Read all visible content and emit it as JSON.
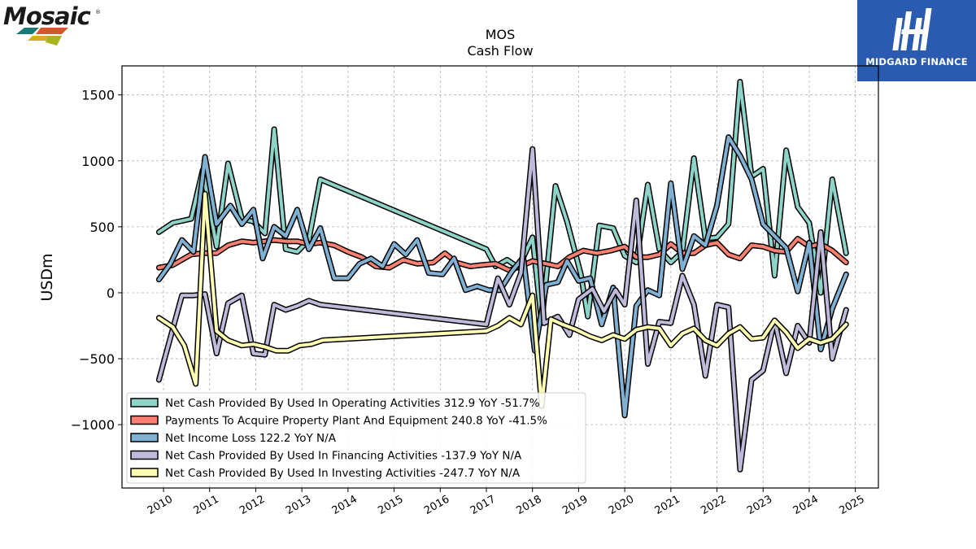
{
  "logos": {
    "left_wordmark": "Mosaic",
    "right_brand": "MIDGARD FINANCE"
  },
  "colors": {
    "operating": "#8dd3c7",
    "capex": "#fb8072",
    "net_income": "#80b1d3",
    "financing": "#bebada",
    "investing": "#ffffb3",
    "midgard_bg": "#2a5bb0"
  },
  "chart_data": {
    "type": "line",
    "title": "MOS",
    "subtitle": "Cash Flow",
    "ylabel": "USDm",
    "xlabel": "",
    "ylim": [
      -1480,
      1720
    ],
    "xlim": [
      2009.1,
      2025.5
    ],
    "yticks": [
      -1000,
      -500,
      0,
      500,
      1000,
      1500
    ],
    "ytick_labels": [
      "−1000",
      "−500",
      "0",
      "500",
      "1000",
      "1500"
    ],
    "xticks": [
      "2010",
      "2011",
      "2012",
      "2013",
      "2014",
      "2015",
      "2016",
      "2017",
      "2018",
      "2019",
      "2020",
      "2021",
      "2022",
      "2023",
      "2024",
      "2025"
    ],
    "grid": true,
    "legend_position": "lower-left",
    "series": [
      {
        "key": "operating",
        "legend": "Net Cash Provided By Used In Operating Activities  312.9 YoY -51.7%",
        "points": [
          [
            2009.9,
            460
          ],
          [
            2010.2,
            530
          ],
          [
            2010.6,
            560
          ],
          [
            2010.85,
            930
          ],
          [
            2011.15,
            350
          ],
          [
            2011.4,
            980
          ],
          [
            2011.7,
            560
          ],
          [
            2011.95,
            540
          ],
          [
            2012.2,
            450
          ],
          [
            2012.4,
            1240
          ],
          [
            2012.65,
            330
          ],
          [
            2012.9,
            310
          ],
          [
            2013.15,
            400
          ],
          [
            2013.4,
            860
          ],
          [
            2017.0,
            330
          ],
          [
            2017.2,
            200
          ],
          [
            2017.45,
            250
          ],
          [
            2017.7,
            190
          ],
          [
            2018.0,
            420
          ],
          [
            2018.2,
            -230
          ],
          [
            2018.5,
            810
          ],
          [
            2018.75,
            540
          ],
          [
            2019.05,
            140
          ],
          [
            2019.2,
            -180
          ],
          [
            2019.45,
            510
          ],
          [
            2019.75,
            490
          ],
          [
            2020.0,
            280
          ],
          [
            2020.25,
            230
          ],
          [
            2020.5,
            820
          ],
          [
            2020.75,
            330
          ],
          [
            2021.0,
            230
          ],
          [
            2021.25,
            310
          ],
          [
            2021.5,
            1020
          ],
          [
            2021.75,
            410
          ],
          [
            2022.0,
            420
          ],
          [
            2022.25,
            520
          ],
          [
            2022.5,
            1600
          ],
          [
            2022.75,
            880
          ],
          [
            2023.0,
            940
          ],
          [
            2023.25,
            130
          ],
          [
            2023.5,
            1080
          ],
          [
            2023.75,
            650
          ],
          [
            2024.0,
            530
          ],
          [
            2024.25,
            0
          ],
          [
            2024.5,
            860
          ],
          [
            2024.8,
            300
          ]
        ]
      },
      {
        "key": "capex",
        "legend": "Payments To Acquire Property Plant And Equipment  240.8 YoY -41.5%",
        "points": [
          [
            2009.9,
            190
          ],
          [
            2010.2,
            210
          ],
          [
            2010.6,
            290
          ],
          [
            2010.85,
            300
          ],
          [
            2011.15,
            300
          ],
          [
            2011.4,
            360
          ],
          [
            2011.7,
            390
          ],
          [
            2011.95,
            380
          ],
          [
            2012.2,
            390
          ],
          [
            2012.4,
            400
          ],
          [
            2012.65,
            390
          ],
          [
            2012.9,
            390
          ],
          [
            2013.15,
            370
          ],
          [
            2013.4,
            380
          ],
          [
            2013.7,
            360
          ],
          [
            2014.0,
            310
          ],
          [
            2014.3,
            270
          ],
          [
            2014.6,
            200
          ],
          [
            2014.9,
            190
          ],
          [
            2015.2,
            250
          ],
          [
            2015.5,
            220
          ],
          [
            2015.85,
            230
          ],
          [
            2016.1,
            300
          ],
          [
            2016.35,
            230
          ],
          [
            2016.65,
            200
          ],
          [
            2016.9,
            210
          ],
          [
            2017.2,
            220
          ],
          [
            2017.5,
            170
          ],
          [
            2017.8,
            210
          ],
          [
            2018.0,
            240
          ],
          [
            2018.3,
            220
          ],
          [
            2018.55,
            200
          ],
          [
            2018.8,
            270
          ],
          [
            2019.1,
            320
          ],
          [
            2019.4,
            300
          ],
          [
            2019.7,
            320
          ],
          [
            2020.0,
            350
          ],
          [
            2020.25,
            270
          ],
          [
            2020.5,
            270
          ],
          [
            2020.75,
            290
          ],
          [
            2021.0,
            370
          ],
          [
            2021.25,
            300
          ],
          [
            2021.5,
            300
          ],
          [
            2021.75,
            360
          ],
          [
            2022.0,
            380
          ],
          [
            2022.25,
            290
          ],
          [
            2022.5,
            260
          ],
          [
            2022.75,
            360
          ],
          [
            2023.0,
            350
          ],
          [
            2023.25,
            320
          ],
          [
            2023.5,
            310
          ],
          [
            2023.75,
            410
          ],
          [
            2024.0,
            350
          ],
          [
            2024.25,
            370
          ],
          [
            2024.5,
            320
          ],
          [
            2024.8,
            230
          ]
        ]
      },
      {
        "key": "net_income",
        "legend": "Net Income Loss  122.2 YoY N/A",
        "points": [
          [
            2009.9,
            100
          ],
          [
            2010.15,
            220
          ],
          [
            2010.4,
            400
          ],
          [
            2010.65,
            310
          ],
          [
            2010.9,
            1030
          ],
          [
            2011.15,
            520
          ],
          [
            2011.45,
            660
          ],
          [
            2011.7,
            520
          ],
          [
            2011.95,
            630
          ],
          [
            2012.15,
            260
          ],
          [
            2012.4,
            500
          ],
          [
            2012.65,
            430
          ],
          [
            2012.9,
            630
          ],
          [
            2013.15,
            330
          ],
          [
            2013.4,
            490
          ],
          [
            2013.7,
            110
          ],
          [
            2014.0,
            110
          ],
          [
            2014.25,
            220
          ],
          [
            2014.5,
            260
          ],
          [
            2014.75,
            200
          ],
          [
            2015.0,
            370
          ],
          [
            2015.25,
            290
          ],
          [
            2015.5,
            400
          ],
          [
            2015.75,
            150
          ],
          [
            2016.05,
            140
          ],
          [
            2016.3,
            260
          ],
          [
            2016.55,
            20
          ],
          [
            2016.8,
            50
          ],
          [
            2017.05,
            20
          ],
          [
            2017.3,
            20
          ],
          [
            2017.55,
            160
          ],
          [
            2017.8,
            270
          ],
          [
            2018.05,
            -440
          ],
          [
            2018.3,
            60
          ],
          [
            2018.55,
            80
          ],
          [
            2018.75,
            240
          ],
          [
            2019.0,
            90
          ],
          [
            2019.25,
            110
          ],
          [
            2019.5,
            -240
          ],
          [
            2019.75,
            40
          ],
          [
            2020.0,
            -930
          ],
          [
            2020.25,
            -100
          ],
          [
            2020.5,
            20
          ],
          [
            2020.75,
            -20
          ],
          [
            2021.0,
            830
          ],
          [
            2021.25,
            180
          ],
          [
            2021.5,
            430
          ],
          [
            2021.75,
            360
          ],
          [
            2022.0,
            660
          ],
          [
            2022.25,
            1180
          ],
          [
            2022.5,
            1040
          ],
          [
            2022.75,
            860
          ],
          [
            2023.0,
            520
          ],
          [
            2023.25,
            430
          ],
          [
            2023.5,
            340
          ],
          [
            2023.75,
            10
          ],
          [
            2024.0,
            380
          ],
          [
            2024.25,
            -430
          ],
          [
            2024.5,
            -120
          ],
          [
            2024.8,
            140
          ]
        ]
      },
      {
        "key": "financing",
        "legend": "Net Cash Provided By Used In Financing Activities  -137.9 YoY N/A",
        "points": [
          [
            2009.9,
            -660
          ],
          [
            2010.15,
            -340
          ],
          [
            2010.4,
            -20
          ],
          [
            2010.65,
            -20
          ],
          [
            2010.9,
            -10
          ],
          [
            2011.15,
            -460
          ],
          [
            2011.4,
            -80
          ],
          [
            2011.7,
            -20
          ],
          [
            2011.95,
            -460
          ],
          [
            2012.2,
            -470
          ],
          [
            2012.4,
            -90
          ],
          [
            2012.65,
            -130
          ],
          [
            2012.9,
            -100
          ],
          [
            2013.15,
            -60
          ],
          [
            2013.4,
            -90
          ],
          [
            2017.0,
            -240
          ],
          [
            2017.25,
            110
          ],
          [
            2017.5,
            -90
          ],
          [
            2017.75,
            150
          ],
          [
            2018.0,
            1090
          ],
          [
            2018.25,
            -230
          ],
          [
            2018.55,
            -180
          ],
          [
            2018.8,
            -320
          ],
          [
            2019.0,
            -50
          ],
          [
            2019.3,
            30
          ],
          [
            2019.55,
            -140
          ],
          [
            2019.8,
            20
          ],
          [
            2020.0,
            -90
          ],
          [
            2020.25,
            700
          ],
          [
            2020.5,
            -540
          ],
          [
            2020.75,
            -220
          ],
          [
            2021.0,
            -230
          ],
          [
            2021.25,
            130
          ],
          [
            2021.5,
            -90
          ],
          [
            2021.75,
            -630
          ],
          [
            2022.0,
            -90
          ],
          [
            2022.25,
            -110
          ],
          [
            2022.5,
            -1340
          ],
          [
            2022.75,
            -660
          ],
          [
            2023.0,
            -590
          ],
          [
            2023.25,
            -210
          ],
          [
            2023.5,
            -610
          ],
          [
            2023.75,
            -250
          ],
          [
            2024.0,
            -380
          ],
          [
            2024.25,
            460
          ],
          [
            2024.5,
            -500
          ],
          [
            2024.8,
            -130
          ]
        ]
      },
      {
        "key": "investing",
        "legend": "Net Cash Provided By Used In Investing Activities  -247.7 YoY N/A",
        "points": [
          [
            2009.9,
            -190
          ],
          [
            2010.2,
            -260
          ],
          [
            2010.45,
            -400
          ],
          [
            2010.7,
            -690
          ],
          [
            2010.9,
            750
          ],
          [
            2011.15,
            -290
          ],
          [
            2011.4,
            -360
          ],
          [
            2011.7,
            -400
          ],
          [
            2011.95,
            -390
          ],
          [
            2012.2,
            -410
          ],
          [
            2012.45,
            -440
          ],
          [
            2012.7,
            -440
          ],
          [
            2012.95,
            -400
          ],
          [
            2013.2,
            -390
          ],
          [
            2013.45,
            -360
          ],
          [
            2017.0,
            -290
          ],
          [
            2017.25,
            -250
          ],
          [
            2017.5,
            -190
          ],
          [
            2017.75,
            -240
          ],
          [
            2018.0,
            -20
          ],
          [
            2018.2,
            -860
          ],
          [
            2018.4,
            -200
          ],
          [
            2018.65,
            -240
          ],
          [
            2018.95,
            -280
          ],
          [
            2019.25,
            -330
          ],
          [
            2019.5,
            -360
          ],
          [
            2019.75,
            -320
          ],
          [
            2020.0,
            -350
          ],
          [
            2020.25,
            -280
          ],
          [
            2020.5,
            -260
          ],
          [
            2020.75,
            -270
          ],
          [
            2021.0,
            -400
          ],
          [
            2021.25,
            -310
          ],
          [
            2021.5,
            -270
          ],
          [
            2021.75,
            -360
          ],
          [
            2022.0,
            -400
          ],
          [
            2022.25,
            -310
          ],
          [
            2022.5,
            -260
          ],
          [
            2022.75,
            -350
          ],
          [
            2023.0,
            -340
          ],
          [
            2023.25,
            -210
          ],
          [
            2023.5,
            -300
          ],
          [
            2023.75,
            -420
          ],
          [
            2024.0,
            -350
          ],
          [
            2024.25,
            -380
          ],
          [
            2024.5,
            -350
          ],
          [
            2024.8,
            -240
          ]
        ]
      }
    ]
  }
}
